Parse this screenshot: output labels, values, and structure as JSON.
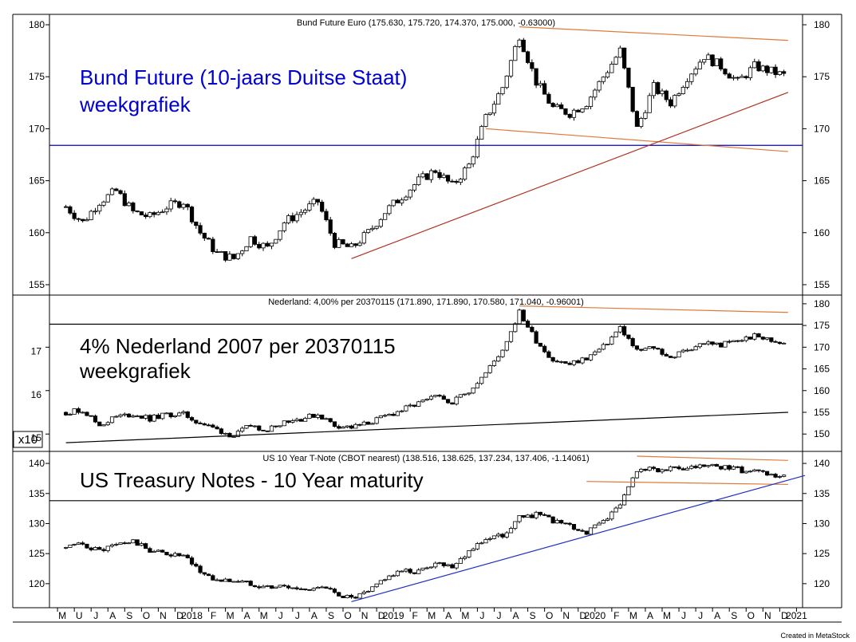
{
  "footer": "Created in MetaStock",
  "colors": {
    "annotation_blue": "#0000cc",
    "trend_orange": "#e07a3a",
    "trend_red": "#b03020",
    "trend_blue": "#2030c0"
  },
  "x_axis": {
    "labels": [
      "M",
      "U",
      "J",
      "A",
      "S",
      "O",
      "N",
      "D",
      "2018",
      "F",
      "M",
      "A",
      "M",
      "J",
      "J",
      "A",
      "S",
      "O",
      "N",
      "D",
      "2019",
      "F",
      "M",
      "A",
      "M",
      "J",
      "J",
      "A",
      "S",
      "O",
      "N",
      "D",
      "2020",
      "F",
      "M",
      "A",
      "M",
      "J",
      "J",
      "A",
      "S",
      "O",
      "N",
      "D",
      "2021"
    ]
  },
  "panels": [
    {
      "id": "bund",
      "title": "Bund Future Euro (175.630, 175.720, 174.370, 175.000, -0.63000)",
      "annotation": [
        "Bund Future (10-jaars Duitse Staat)",
        "weekgrafiek"
      ],
      "annotation_color": "#0000cc",
      "y_ticks": [
        155,
        160,
        165,
        170,
        175,
        180
      ],
      "left_ticks": [
        "155",
        "160",
        "165",
        "170",
        "175",
        "180"
      ],
      "right_ticks": [
        "155",
        "160",
        "165",
        "170",
        "175",
        "180"
      ],
      "horizontal_line": 168.4
    },
    {
      "id": "nl",
      "title": "Nederland: 4,00% per 20370115 (171.890, 171.890, 170.580, 171.040, -0.96001)",
      "annotation": [
        "4% Nederland 2007 per 20370115",
        "weekgrafiek"
      ],
      "annotation_color": "#000000",
      "y_ticks": [
        150,
        155,
        160,
        165,
        170,
        175,
        180
      ],
      "left_ticks": [
        "15",
        "16",
        "17"
      ],
      "left_multiplier": "x10",
      "right_ticks": [
        "150",
        "155",
        "160",
        "165",
        "170",
        "175",
        "180"
      ],
      "horizontal_line": 175.3
    },
    {
      "id": "us",
      "title": "US 10 Year T-Note (CBOT nearest) (138.516, 138.625, 137.234, 137.406, -1.14061)",
      "annotation": [
        "US Treasury Notes - 10 Year maturity"
      ],
      "annotation_color": "#000000",
      "y_ticks": [
        120,
        125,
        130,
        135,
        140
      ],
      "left_ticks": [
        "120",
        "125",
        "130",
        "135",
        "140"
      ],
      "right_ticks": [
        "120",
        "125",
        "130",
        "135",
        "140"
      ],
      "horizontal_line": 133.8
    }
  ],
  "chart_data": [
    {
      "type": "candlestick",
      "title": "Bund Future Euro (175.630, 175.720, 174.370, 175.000, -0.63000)",
      "ylim": [
        154,
        181
      ],
      "x_range": [
        "2017-05",
        "2021-01"
      ],
      "close_series": [
        [
          "2017-05",
          162.5
        ],
        [
          "2017-06",
          161.0
        ],
        [
          "2017-07",
          163.0
        ],
        [
          "2017-08",
          164.0
        ],
        [
          "2017-09",
          162.0
        ],
        [
          "2017-10",
          161.5
        ],
        [
          "2017-11",
          162.5
        ],
        [
          "2017-12",
          163.0
        ],
        [
          "2018-01",
          160.0
        ],
        [
          "2018-02",
          158.0
        ],
        [
          "2018-03",
          157.5
        ],
        [
          "2018-04",
          159.5
        ],
        [
          "2018-05",
          158.5
        ],
        [
          "2018-06",
          161.0
        ],
        [
          "2018-07",
          162.0
        ],
        [
          "2018-08",
          163.0
        ],
        [
          "2018-09",
          159.0
        ],
        [
          "2018-10",
          158.5
        ],
        [
          "2018-11",
          160.0
        ],
        [
          "2018-12",
          162.0
        ],
        [
          "2019-01",
          163.5
        ],
        [
          "2019-02",
          165.0
        ],
        [
          "2019-03",
          166.0
        ],
        [
          "2019-04",
          164.5
        ],
        [
          "2019-05",
          166.5
        ],
        [
          "2019-06",
          171.0
        ],
        [
          "2019-07",
          174.0
        ],
        [
          "2019-08",
          179.0
        ],
        [
          "2019-09",
          174.5
        ],
        [
          "2019-10",
          172.0
        ],
        [
          "2019-11",
          171.5
        ],
        [
          "2019-12",
          172.5
        ],
        [
          "2020-01",
          175.0
        ],
        [
          "2020-02",
          177.5
        ],
        [
          "2020-03",
          170.0
        ],
        [
          "2020-04",
          174.0
        ],
        [
          "2020-05",
          172.5
        ],
        [
          "2020-06",
          175.0
        ],
        [
          "2020-07",
          177.0
        ],
        [
          "2020-08",
          176.0
        ],
        [
          "2020-09",
          174.5
        ],
        [
          "2020-10",
          176.0
        ],
        [
          "2020-11",
          175.5
        ],
        [
          "2020-12",
          175.0
        ]
      ],
      "trendlines": [
        {
          "color": "trend_orange",
          "from": [
            "2019-08",
            179.8
          ],
          "to": [
            "2020-12",
            178.5
          ]
        },
        {
          "color": "trend_orange",
          "from": [
            "2019-06",
            170.0
          ],
          "to": [
            "2020-12",
            167.8
          ]
        },
        {
          "color": "trend_red",
          "from": [
            "2018-10",
            157.5
          ],
          "to": [
            "2020-12",
            173.5
          ]
        },
        {
          "color": "annotation_blue",
          "from": [
            "2017-05",
            168.4
          ],
          "to": [
            "2021-01",
            168.4
          ]
        }
      ]
    },
    {
      "type": "candlestick",
      "title": "Nederland: 4,00% per 20370115 (171.890, 171.890, 170.580, 171.040, -0.96001)",
      "ylim": [
        146,
        182
      ],
      "x_range": [
        "2017-05",
        "2021-01"
      ],
      "close_series": [
        [
          "2017-05",
          155.0
        ],
        [
          "2017-06",
          155.5
        ],
        [
          "2017-07",
          152.0
        ],
        [
          "2017-08",
          154.0
        ],
        [
          "2017-09",
          154.5
        ],
        [
          "2017-10",
          153.5
        ],
        [
          "2017-11",
          154.5
        ],
        [
          "2017-12",
          154.5
        ],
        [
          "2018-01",
          152.5
        ],
        [
          "2018-02",
          151.0
        ],
        [
          "2018-03",
          149.5
        ],
        [
          "2018-04",
          152.0
        ],
        [
          "2018-05",
          151.0
        ],
        [
          "2018-06",
          153.0
        ],
        [
          "2018-07",
          153.5
        ],
        [
          "2018-08",
          154.5
        ],
        [
          "2018-09",
          152.0
        ],
        [
          "2018-10",
          151.5
        ],
        [
          "2018-11",
          152.5
        ],
        [
          "2018-12",
          154.0
        ],
        [
          "2019-01",
          155.5
        ],
        [
          "2019-02",
          157.0
        ],
        [
          "2019-03",
          158.5
        ],
        [
          "2019-04",
          157.5
        ],
        [
          "2019-05",
          160.0
        ],
        [
          "2019-06",
          164.0
        ],
        [
          "2019-07",
          169.5
        ],
        [
          "2019-08",
          178.0
        ],
        [
          "2019-09",
          171.5
        ],
        [
          "2019-10",
          167.0
        ],
        [
          "2019-11",
          166.0
        ],
        [
          "2019-12",
          167.5
        ],
        [
          "2020-01",
          170.0
        ],
        [
          "2020-02",
          174.5
        ],
        [
          "2020-03",
          169.0
        ],
        [
          "2020-04",
          170.0
        ],
        [
          "2020-05",
          167.5
        ],
        [
          "2020-06",
          169.5
        ],
        [
          "2020-07",
          171.0
        ],
        [
          "2020-08",
          170.5
        ],
        [
          "2020-09",
          171.5
        ],
        [
          "2020-10",
          172.5
        ],
        [
          "2020-11",
          171.5
        ],
        [
          "2020-12",
          171.0
        ]
      ],
      "trendlines": [
        {
          "color": "trend_orange",
          "from": [
            "2019-08",
            179.5
          ],
          "to": [
            "2020-12",
            178.0
          ]
        },
        {
          "color": "black",
          "from": [
            "2017-05",
            148.0
          ],
          "to": [
            "2020-12",
            155.0
          ]
        },
        {
          "color": "black",
          "from": [
            "2017-05",
            175.3
          ],
          "to": [
            "2021-01",
            175.3
          ]
        }
      ]
    },
    {
      "type": "candlestick",
      "title": "US 10 Year T-Note (CBOT nearest) (138.516, 138.625, 137.234, 137.406, -1.14061)",
      "ylim": [
        116,
        142
      ],
      "x_range": [
        "2017-05",
        "2021-01"
      ],
      "close_series": [
        [
          "2017-05",
          126.0
        ],
        [
          "2017-06",
          126.5
        ],
        [
          "2017-07",
          125.5
        ],
        [
          "2017-08",
          126.5
        ],
        [
          "2017-09",
          127.0
        ],
        [
          "2017-10",
          125.5
        ],
        [
          "2017-11",
          125.0
        ],
        [
          "2017-12",
          124.5
        ],
        [
          "2018-01",
          122.0
        ],
        [
          "2018-02",
          120.5
        ],
        [
          "2018-03",
          120.5
        ],
        [
          "2018-04",
          120.0
        ],
        [
          "2018-05",
          119.5
        ],
        [
          "2018-06",
          119.5
        ],
        [
          "2018-07",
          119.0
        ],
        [
          "2018-08",
          119.5
        ],
        [
          "2018-09",
          118.5
        ],
        [
          "2018-10",
          117.5
        ],
        [
          "2018-11",
          118.5
        ],
        [
          "2018-12",
          121.0
        ],
        [
          "2019-01",
          122.0
        ],
        [
          "2019-02",
          122.0
        ],
        [
          "2019-03",
          123.5
        ],
        [
          "2019-04",
          123.0
        ],
        [
          "2019-05",
          125.5
        ],
        [
          "2019-06",
          127.5
        ],
        [
          "2019-07",
          128.0
        ],
        [
          "2019-08",
          131.0
        ],
        [
          "2019-09",
          131.5
        ],
        [
          "2019-10",
          130.5
        ],
        [
          "2019-11",
          129.5
        ],
        [
          "2019-12",
          128.5
        ],
        [
          "2020-01",
          130.5
        ],
        [
          "2020-02",
          133.0
        ],
        [
          "2020-03",
          139.0
        ],
        [
          "2020-04",
          139.0
        ],
        [
          "2020-05",
          139.0
        ],
        [
          "2020-06",
          139.0
        ],
        [
          "2020-07",
          139.5
        ],
        [
          "2020-08",
          139.5
        ],
        [
          "2020-09",
          139.0
        ],
        [
          "2020-10",
          138.5
        ],
        [
          "2020-11",
          138.0
        ],
        [
          "2020-12",
          137.5
        ]
      ],
      "trendlines": [
        {
          "color": "trend_orange",
          "from": [
            "2020-03",
            141.2
          ],
          "to": [
            "2020-12",
            140.5
          ]
        },
        {
          "color": "trend_orange",
          "from": [
            "2019-12",
            137.0
          ],
          "to": [
            "2020-12",
            136.5
          ]
        },
        {
          "color": "trend_blue",
          "from": [
            "2018-10",
            117.0
          ],
          "to": [
            "2021-01",
            138.0
          ]
        },
        {
          "color": "black",
          "from": [
            "2017-05",
            133.8
          ],
          "to": [
            "2021-01",
            133.8
          ]
        }
      ]
    }
  ]
}
